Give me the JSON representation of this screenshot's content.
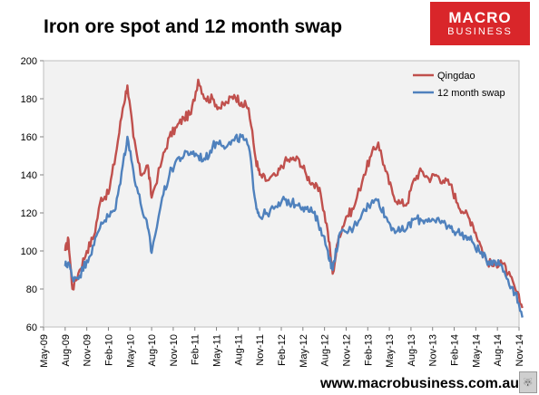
{
  "header": {
    "title": "Iron ore spot and 12 month swap"
  },
  "logo": {
    "line1": "MACRO",
    "line2": "BUSINESS"
  },
  "footer": {
    "url": "www.macrobusiness.com.au"
  },
  "colors": {
    "qingdao": "#c0504d",
    "swap": "#4f81bd",
    "plot_bg": "#f2f2f2"
  },
  "chart_data": {
    "type": "line",
    "title": "Iron ore spot and 12 month swap",
    "xlabel": "",
    "ylabel": "",
    "ylim": [
      60,
      200
    ],
    "yticks": [
      60,
      80,
      100,
      120,
      140,
      160,
      180,
      200
    ],
    "x_tick_labels": [
      "May-09",
      "Aug-09",
      "Nov-09",
      "Feb-10",
      "May-10",
      "Aug-10",
      "Nov-10",
      "Feb-11",
      "May-11",
      "Aug-11",
      "Nov-11",
      "Feb-12",
      "May-12",
      "Aug-12",
      "Nov-12",
      "Feb-13",
      "May-13",
      "Aug-13",
      "Nov-13",
      "Feb-14",
      "May-14",
      "Aug-14",
      "Nov-14"
    ],
    "grid": false,
    "legend_position": "top-right",
    "series": [
      {
        "name": "Qingdao",
        "x": [
          "2009-08-01",
          "2009-08-15",
          "2009-09-01",
          "2009-10-01",
          "2009-11-01",
          "2009-12-01",
          "2010-01-01",
          "2010-02-01",
          "2010-03-01",
          "2010-04-01",
          "2010-04-20",
          "2010-05-15",
          "2010-06-15",
          "2010-07-15",
          "2010-08-01",
          "2010-09-15",
          "2010-10-15",
          "2010-11-15",
          "2010-12-15",
          "2011-01-15",
          "2011-02-15",
          "2011-03-15",
          "2011-04-15",
          "2011-05-15",
          "2011-06-15",
          "2011-07-15",
          "2011-08-15",
          "2011-09-15",
          "2011-10-15",
          "2011-11-01",
          "2011-12-01",
          "2012-01-15",
          "2012-02-15",
          "2012-03-15",
          "2012-04-15",
          "2012-05-15",
          "2012-06-15",
          "2012-07-15",
          "2012-08-15",
          "2012-09-05",
          "2012-10-01",
          "2012-11-01",
          "2012-12-01",
          "2013-01-15",
          "2013-02-15",
          "2013-03-15",
          "2013-04-15",
          "2013-05-15",
          "2013-06-15",
          "2013-07-15",
          "2013-08-15",
          "2013-09-15",
          "2013-10-15",
          "2013-11-15",
          "2013-12-15",
          "2014-01-15",
          "2014-02-15",
          "2014-03-15",
          "2014-04-15",
          "2014-05-15",
          "2014-06-15",
          "2014-07-15",
          "2014-08-15",
          "2014-09-15",
          "2014-10-15",
          "2014-11-15"
        ],
        "values": [
          100,
          106,
          80,
          90,
          100,
          108,
          128,
          130,
          150,
          175,
          187,
          160,
          140,
          145,
          128,
          148,
          160,
          165,
          170,
          172,
          190,
          180,
          180,
          175,
          178,
          182,
          178,
          175,
          148,
          140,
          137,
          140,
          147,
          148,
          148,
          140,
          135,
          130,
          110,
          88,
          108,
          118,
          122,
          140,
          150,
          157,
          142,
          130,
          125,
          125,
          138,
          142,
          138,
          140,
          137,
          135,
          125,
          120,
          115,
          105,
          95,
          92,
          95,
          88,
          80,
          70
        ]
      },
      {
        "name": "12 month swap",
        "x": [
          "2009-08-01",
          "2009-08-15",
          "2009-09-01",
          "2009-10-01",
          "2009-11-01",
          "2009-12-01",
          "2010-01-01",
          "2010-02-01",
          "2010-03-01",
          "2010-04-01",
          "2010-04-20",
          "2010-05-15",
          "2010-06-15",
          "2010-07-15",
          "2010-08-01",
          "2010-09-15",
          "2010-10-15",
          "2010-11-15",
          "2010-12-15",
          "2011-01-15",
          "2011-02-15",
          "2011-03-15",
          "2011-04-15",
          "2011-05-15",
          "2011-06-15",
          "2011-07-15",
          "2011-08-15",
          "2011-09-15",
          "2011-10-15",
          "2011-11-01",
          "2011-12-01",
          "2012-01-15",
          "2012-02-15",
          "2012-03-15",
          "2012-04-15",
          "2012-05-15",
          "2012-06-15",
          "2012-07-15",
          "2012-08-15",
          "2012-09-05",
          "2012-10-01",
          "2012-11-01",
          "2012-12-01",
          "2013-01-15",
          "2013-02-15",
          "2013-03-15",
          "2013-04-15",
          "2013-05-15",
          "2013-06-15",
          "2013-07-15",
          "2013-08-15",
          "2013-09-15",
          "2013-10-15",
          "2013-11-15",
          "2013-12-15",
          "2014-01-15",
          "2014-02-15",
          "2014-03-15",
          "2014-04-15",
          "2014-05-15",
          "2014-06-15",
          "2014-07-15",
          "2014-08-15",
          "2014-09-15",
          "2014-10-15",
          "2014-11-15"
        ],
        "values": [
          92,
          94,
          86,
          87,
          95,
          103,
          115,
          118,
          122,
          145,
          160,
          142,
          125,
          112,
          99,
          128,
          140,
          148,
          150,
          152,
          150,
          148,
          155,
          158,
          155,
          158,
          160,
          155,
          125,
          118,
          120,
          123,
          127,
          125,
          125,
          122,
          120,
          112,
          100,
          90,
          108,
          110,
          112,
          122,
          125,
          127,
          118,
          112,
          110,
          112,
          117,
          116,
          117,
          115,
          115,
          112,
          110,
          108,
          105,
          100,
          95,
          95,
          93,
          85,
          78,
          65
        ]
      }
    ]
  }
}
